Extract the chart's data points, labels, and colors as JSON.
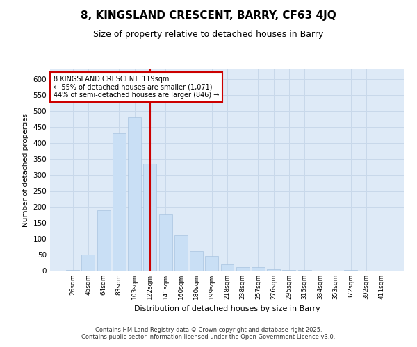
{
  "title": "8, KINGSLAND CRESCENT, BARRY, CF63 4JQ",
  "subtitle": "Size of property relative to detached houses in Barry",
  "xlabel": "Distribution of detached houses by size in Barry",
  "ylabel": "Number of detached properties",
  "bar_color": "#c9dff5",
  "bar_edge_color": "#a8c4e0",
  "grid_color": "#c8d8ea",
  "background_color": "#deeaf7",
  "vline_color": "#cc0000",
  "annotation_text": "8 KINGSLAND CRESCENT: 119sqm\n← 55% of detached houses are smaller (1,071)\n44% of semi-detached houses are larger (846) →",
  "annotation_box_color": "#ffffff",
  "annotation_box_edge_color": "#cc0000",
  "footer_text": "Contains HM Land Registry data © Crown copyright and database right 2025.\nContains public sector information licensed under the Open Government Licence v3.0.",
  "categories": [
    "26sqm",
    "45sqm",
    "64sqm",
    "83sqm",
    "103sqm",
    "122sqm",
    "141sqm",
    "160sqm",
    "180sqm",
    "199sqm",
    "218sqm",
    "238sqm",
    "257sqm",
    "276sqm",
    "295sqm",
    "315sqm",
    "334sqm",
    "353sqm",
    "372sqm",
    "392sqm",
    "411sqm"
  ],
  "values": [
    3,
    50,
    190,
    430,
    480,
    335,
    175,
    110,
    60,
    45,
    20,
    10,
    10,
    5,
    3,
    3,
    1,
    1,
    3,
    1,
    1
  ],
  "ylim": [
    0,
    630
  ],
  "yticks": [
    0,
    50,
    100,
    150,
    200,
    250,
    300,
    350,
    400,
    450,
    500,
    550,
    600
  ],
  "fig_width": 6.0,
  "fig_height": 5.0,
  "fig_bg": "#ffffff"
}
